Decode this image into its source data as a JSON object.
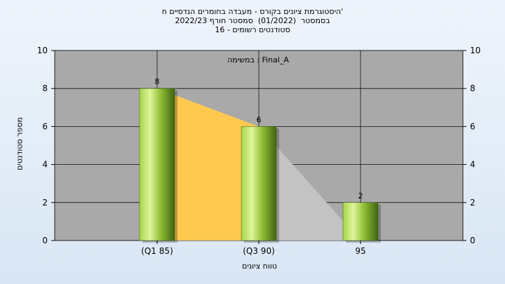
{
  "chart_data": {
    "type": "bar",
    "title_lines": [
      "היסטוגרמת ציונים בקורס - מעבדה בחומרים הנדסיים ח'",
      "בסמסטר  (01/2022)  סמסטר חורף 2022/23",
      "סטודנטים רשומים - 16"
    ],
    "annotation": "במשימה : Final_A",
    "xlabel": "טווח ציונים",
    "ylabel": "מספר סטודנטים",
    "categories": [
      "(Q1 85)",
      "(Q3 90)",
      "95"
    ],
    "values": [
      8,
      6,
      2
    ],
    "ylim": [
      0,
      10
    ],
    "yticks": [
      0,
      2,
      4,
      6,
      8,
      10
    ],
    "grid": true,
    "colors": {
      "plot_bg": "#a9a9a9",
      "bar_light": "#c8e878",
      "bar_dark": "#4e7a18",
      "area_orange": "#ffc94f",
      "area_gray": "#c3c3c3"
    }
  }
}
